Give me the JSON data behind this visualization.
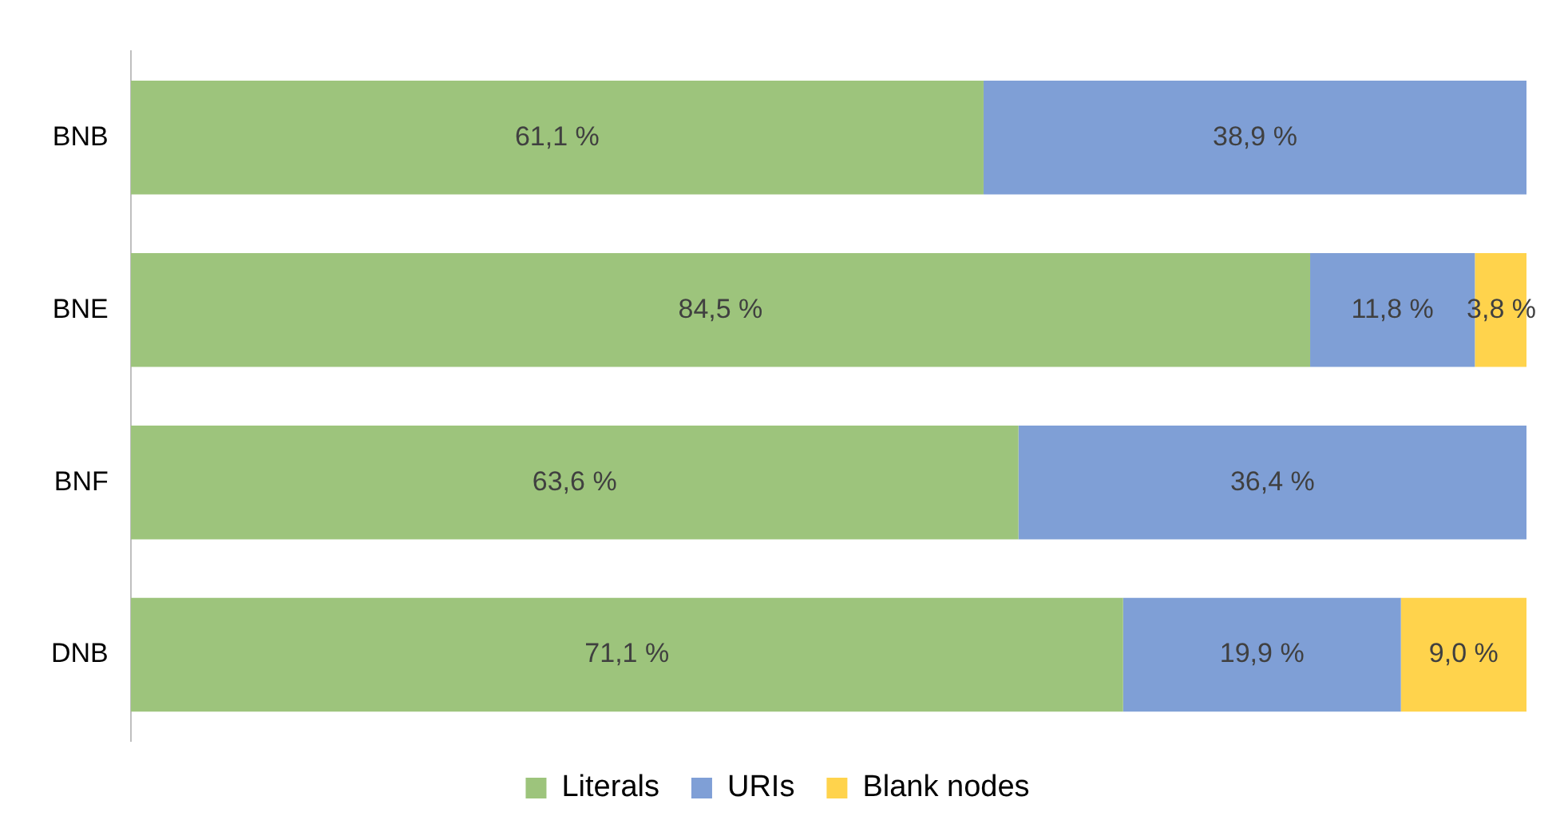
{
  "chart_data": {
    "type": "bar",
    "orientation": "horizontal",
    "stacked": true,
    "categories": [
      "BNB",
      "BNE",
      "BNF",
      "DNB"
    ],
    "series": [
      {
        "name": "Literals",
        "color": "#9dc47c",
        "values": [
          61.1,
          84.5,
          63.6,
          71.1
        ],
        "value_labels": [
          "61,1 %",
          "84,5 %",
          "63,6 %",
          "71,1 %"
        ]
      },
      {
        "name": "URIs",
        "color": "#7f9fd6",
        "values": [
          38.9,
          11.8,
          36.4,
          19.9
        ],
        "value_labels": [
          "38,9 %",
          "11,8 %",
          "36,4 %",
          "19,9 %"
        ]
      },
      {
        "name": "Blank nodes",
        "color": "#ffd34c",
        "values": [
          null,
          3.8,
          null,
          9.0
        ],
        "value_labels": [
          null,
          "3,8 %",
          null,
          "9,0 %"
        ]
      }
    ],
    "xlim": [
      0,
      100
    ],
    "tick_labels": "y",
    "legend": "bottom"
  }
}
